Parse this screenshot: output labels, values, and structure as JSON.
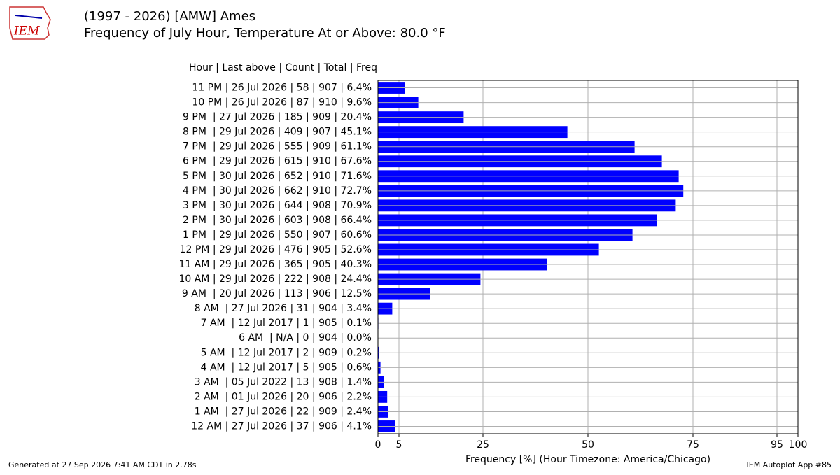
{
  "logo_text": "IEM",
  "chart_data": {
    "type": "bar",
    "orientation": "horizontal",
    "title": "(1997 - 2026) [AMW] Ames",
    "subtitle": "Frequency of July Hour, Temperature At or Above: 80.0 °F",
    "column_header": "Hour | Last above | Count | Total | Freq",
    "xlabel": "Frequency [%] (Hour Timezone: America/Chicago)",
    "footer_left": "Generated at 27 Sep 2026 7:41 AM CDT in 2.78s",
    "footer_right": "IEM Autoplot App #85",
    "categories": [
      "11 PM | 26 Jul 2026 | 58 | 907 | 6.4%",
      "10 PM | 26 Jul 2026 | 87 | 910 | 9.6%",
      "9 PM  | 27 Jul 2026 | 185 | 909 | 20.4%",
      "8 PM  | 29 Jul 2026 | 409 | 907 | 45.1%",
      "7 PM  | 29 Jul 2026 | 555 | 909 | 61.1%",
      "6 PM  | 29 Jul 2026 | 615 | 910 | 67.6%",
      "5 PM  | 30 Jul 2026 | 652 | 910 | 71.6%",
      "4 PM  | 30 Jul 2026 | 662 | 910 | 72.7%",
      "3 PM  | 30 Jul 2026 | 644 | 908 | 70.9%",
      "2 PM  | 30 Jul 2026 | 603 | 908 | 66.4%",
      "1 PM  | 29 Jul 2026 | 550 | 907 | 60.6%",
      "12 PM | 29 Jul 2026 | 476 | 905 | 52.6%",
      "11 AM | 29 Jul 2026 | 365 | 905 | 40.3%",
      "10 AM | 29 Jul 2026 | 222 | 908 | 24.4%",
      "9 AM  | 20 Jul 2026 | 113 | 906 | 12.5%",
      "8 AM  | 27 Jul 2026 | 31 | 904 | 3.4%",
      "7 AM  | 12 Jul 2017 | 1 | 905 | 0.1%",
      "6 AM  | N/A | 0 | 904 | 0.0%",
      "5 AM  | 12 Jul 2017 | 2 | 909 | 0.2%",
      "4 AM  | 12 Jul 2017 | 5 | 905 | 0.6%",
      "3 AM  | 05 Jul 2022 | 13 | 908 | 1.4%",
      "2 AM  | 01 Jul 2026 | 20 | 906 | 2.2%",
      "1 AM  | 27 Jul 2026 | 22 | 909 | 2.4%",
      "12 AM | 27 Jul 2026 | 37 | 906 | 4.1%"
    ],
    "values": [
      6.4,
      9.6,
      20.4,
      45.1,
      61.1,
      67.6,
      71.6,
      72.7,
      70.9,
      66.4,
      60.6,
      52.6,
      40.3,
      24.4,
      12.5,
      3.4,
      0.1,
      0.0,
      0.2,
      0.6,
      1.4,
      2.2,
      2.4,
      4.1
    ],
    "color": "#0000ff",
    "xlim": [
      0,
      100
    ],
    "xticks": [
      0,
      5,
      25,
      50,
      75,
      95,
      100
    ],
    "grid": true
  }
}
